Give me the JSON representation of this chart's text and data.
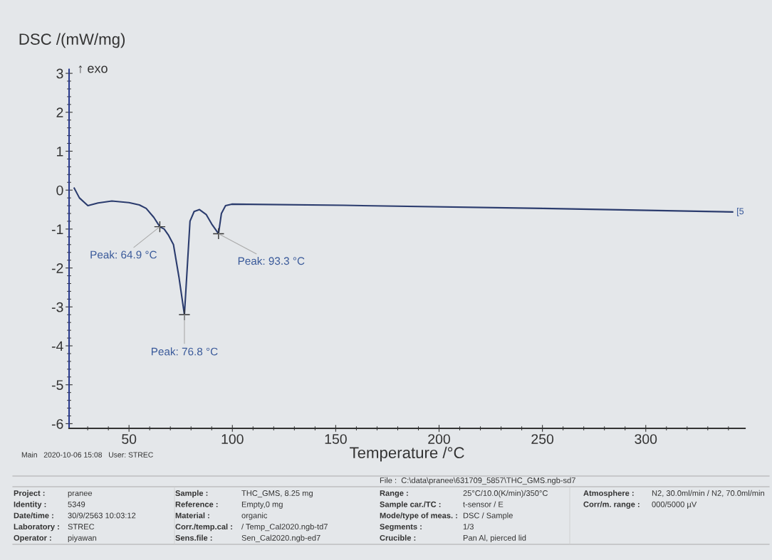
{
  "chart_data": {
    "type": "line",
    "xlabel": "Temperature /°C",
    "ylabel": "DSC /(mW/mg)",
    "x": [
      23.5,
      26,
      30.1,
      35,
      41.7,
      50,
      55,
      58.3,
      62,
      64.9,
      67,
      69,
      71.5,
      74.2,
      76.8,
      78.1,
      79.5,
      81.5,
      84.1,
      87.4,
      90,
      93.3,
      94.7,
      96.7,
      99.7,
      154,
      250,
      342
    ],
    "series": [
      {
        "color": "#2b3c6e",
        "values": [
          0.05,
          -0.2,
          -0.4,
          -0.33,
          -0.28,
          -0.32,
          -0.38,
          -0.47,
          -0.7,
          -0.94,
          -1.0,
          -1.15,
          -1.4,
          -2.25,
          -3.2,
          -2.05,
          -0.8,
          -0.55,
          -0.5,
          -0.63,
          -0.87,
          -1.12,
          -0.6,
          -0.4,
          -0.36,
          -0.39,
          -0.47,
          -0.56
        ]
      }
    ],
    "xlim": [
      21,
      348
    ],
    "xticks": [
      50,
      100,
      150,
      200,
      250,
      300
    ],
    "ylim": [
      -6.12,
      3.1
    ],
    "yticks": [
      -6,
      -5,
      -4,
      -3,
      -2,
      -1,
      0,
      1,
      2,
      3
    ],
    "grid": false,
    "marker": "none",
    "line_style": "solid",
    "annotations": [
      "↑ exo",
      {
        "text": "Peak: 64.9 °C",
        "x": 64.9,
        "y": -0.94
      },
      {
        "text": "Peak: 76.8 °C",
        "x": 76.8,
        "y": -3.2
      },
      {
        "text": "Peak: 93.3 °C",
        "x": 93.3,
        "y": -1.12
      },
      {
        "text": "[5",
        "x": 342,
        "y": -0.56
      },
      "Main   2020-10-06 15:08   User: STREC",
      "File :  C:\\data\\pranee\\631709_5857\\THC_GMS.ngb-sd7",
      "Project :",
      "pranee",
      "Identity :",
      "5349",
      "Date/time :",
      "30/9/2563 10:03:12",
      "Laboratory :",
      "STREC",
      "Operator :",
      "piyawan",
      "Sample :",
      "THC_GMS, 8.25 mg",
      "Reference :",
      "Empty,0 mg",
      "Material :",
      "organic",
      "Corr./temp.cal :",
      "/ Temp_Cal2020.ngb-td7",
      "Sens.file :",
      "Sen_Cal2020.ngb-ed7",
      "Range :",
      "25°C/10.0(K/min)/350°C",
      "Sample car./TC :",
      "t-sensor / E",
      "Mode/type of meas. :",
      "DSC / Sample",
      "Segments :",
      "1/3",
      "Crucible :",
      "Pan Al, pierced lid",
      "Atmosphere :",
      "N2, 30.0ml/min / N2, 70.0ml/min",
      "Corr/m. range :",
      "000/5000 µV"
    ]
  }
}
